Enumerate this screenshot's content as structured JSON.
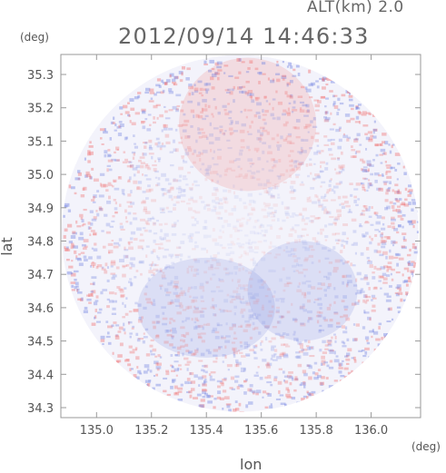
{
  "header": {
    "altitude_label": "ALT(km) 2.0",
    "timestamp": "2012/09/14 14:46:33"
  },
  "chart_data": {
    "type": "heatmap",
    "title": "2012/09/14 14:46:33",
    "xlabel": "lon",
    "ylabel": "lat",
    "x_unit": "(deg)",
    "y_unit": "(deg)",
    "xlim": [
      134.87,
      136.18
    ],
    "ylim": [
      34.27,
      35.36
    ],
    "x_ticks": [
      135.0,
      135.2,
      135.4,
      135.6,
      135.8,
      136.0
    ],
    "x_tick_labels": [
      "135.0",
      "135.2",
      "135.4",
      "135.6",
      "135.8",
      "136.0"
    ],
    "y_ticks": [
      34.3,
      34.4,
      34.5,
      34.6,
      34.7,
      34.8,
      34.9,
      35.0,
      35.1,
      35.2,
      35.3
    ],
    "y_tick_labels": [
      "34.3",
      "34.4",
      "34.5",
      "34.6",
      "34.7",
      "34.8",
      "34.9",
      "35.0",
      "35.1",
      "35.2",
      "35.3"
    ],
    "coverage": {
      "shape": "circle",
      "center_lon": 135.523,
      "center_lat": 34.823,
      "radius_deg_lon": 0.65
    },
    "regions": [
      {
        "sign": "positive",
        "center_lon": 135.55,
        "center_lat": 35.15,
        "extent_lon": 0.25,
        "extent_lat": 0.2
      },
      {
        "sign": "negative",
        "center_lon": 135.4,
        "center_lat": 34.6,
        "extent_lon": 0.25,
        "extent_lat": 0.15
      },
      {
        "sign": "negative",
        "center_lon": 135.75,
        "center_lat": 34.65,
        "extent_lon": 0.2,
        "extent_lat": 0.15
      }
    ],
    "colormap": {
      "positive": "#f07070",
      "negative": "#7080e0",
      "zero": "#ffffff"
    },
    "grid": false
  }
}
